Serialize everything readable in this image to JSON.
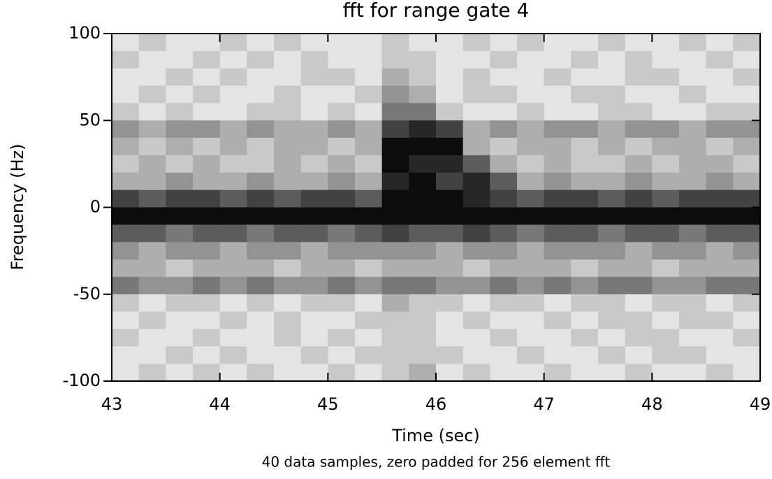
{
  "chart_data": {
    "type": "heatmap",
    "title": "fft for range gate  4",
    "xlabel": "Time (sec)",
    "ylabel": "Frequency (Hz)",
    "subtitle": "40 data samples, zero padded for  256 element fft",
    "xlim": [
      43,
      49
    ],
    "ylim": [
      -100,
      100
    ],
    "xticks": [
      43,
      44,
      45,
      46,
      47,
      48,
      49
    ],
    "yticks": [
      -100,
      -50,
      0,
      50,
      100
    ],
    "xbins": [
      43,
      43.25,
      43.5,
      43.75,
      44,
      44.25,
      44.5,
      44.75,
      45,
      45.25,
      45.5,
      45.75,
      46,
      46.25,
      46.5,
      46.75,
      47,
      47.25,
      47.5,
      47.75,
      48,
      48.25,
      48.5,
      48.75,
      49
    ],
    "ybins": [
      100,
      90,
      80,
      70,
      60,
      50,
      40,
      30,
      20,
      10,
      0,
      -10,
      -20,
      -30,
      -40,
      -50,
      -60,
      -70,
      -80,
      -90,
      -100
    ],
    "z": [
      [
        1,
        2,
        1,
        1,
        2,
        1,
        2,
        1,
        1,
        1,
        2,
        1,
        1,
        2,
        1,
        2,
        1,
        1,
        2,
        1,
        1,
        2,
        1,
        2
      ],
      [
        2,
        1,
        1,
        2,
        1,
        2,
        1,
        2,
        1,
        1,
        2,
        2,
        1,
        1,
        2,
        1,
        1,
        2,
        1,
        2,
        1,
        1,
        2,
        1
      ],
      [
        1,
        1,
        2,
        1,
        2,
        1,
        1,
        2,
        2,
        1,
        3,
        2,
        1,
        2,
        1,
        1,
        2,
        1,
        1,
        2,
        2,
        1,
        1,
        2
      ],
      [
        1,
        2,
        1,
        2,
        1,
        1,
        2,
        1,
        1,
        2,
        4,
        3,
        1,
        2,
        2,
        1,
        1,
        2,
        2,
        1,
        1,
        2,
        1,
        1
      ],
      [
        2,
        1,
        2,
        1,
        1,
        2,
        2,
        1,
        2,
        1,
        5,
        5,
        2,
        1,
        1,
        2,
        1,
        1,
        2,
        2,
        1,
        1,
        2,
        2
      ],
      [
        4,
        3,
        4,
        4,
        3,
        4,
        3,
        3,
        4,
        3,
        7,
        8,
        7,
        3,
        4,
        3,
        4,
        4,
        3,
        4,
        4,
        3,
        4,
        4
      ],
      [
        3,
        2,
        3,
        2,
        3,
        2,
        3,
        3,
        2,
        3,
        9,
        9,
        9,
        3,
        2,
        3,
        3,
        2,
        3,
        2,
        3,
        3,
        2,
        3
      ],
      [
        2,
        3,
        2,
        3,
        2,
        2,
        3,
        2,
        3,
        2,
        9,
        8,
        8,
        6,
        3,
        2,
        3,
        2,
        2,
        3,
        2,
        3,
        3,
        2
      ],
      [
        3,
        3,
        4,
        3,
        3,
        4,
        3,
        3,
        4,
        3,
        8,
        9,
        7,
        8,
        6,
        3,
        4,
        3,
        3,
        4,
        3,
        3,
        4,
        3
      ],
      [
        7,
        6,
        7,
        7,
        6,
        7,
        6,
        7,
        7,
        6,
        9,
        9,
        9,
        8,
        7,
        6,
        7,
        7,
        6,
        7,
        6,
        7,
        7,
        7
      ],
      [
        9,
        9,
        9,
        9,
        9,
        9,
        9,
        9,
        9,
        9,
        9,
        9,
        9,
        9,
        9,
        9,
        9,
        9,
        9,
        9,
        9,
        9,
        9,
        9
      ],
      [
        6,
        6,
        5,
        6,
        6,
        5,
        6,
        6,
        5,
        6,
        7,
        6,
        6,
        7,
        6,
        5,
        6,
        6,
        5,
        6,
        6,
        5,
        6,
        6
      ],
      [
        4,
        3,
        4,
        4,
        3,
        4,
        4,
        3,
        4,
        4,
        4,
        4,
        3,
        4,
        4,
        3,
        4,
        4,
        4,
        3,
        4,
        4,
        3,
        4
      ],
      [
        3,
        3,
        2,
        3,
        3,
        3,
        2,
        3,
        3,
        2,
        3,
        3,
        3,
        2,
        3,
        3,
        3,
        2,
        3,
        3,
        2,
        3,
        3,
        3
      ],
      [
        5,
        4,
        4,
        5,
        4,
        5,
        4,
        4,
        5,
        4,
        5,
        5,
        4,
        4,
        5,
        4,
        5,
        4,
        5,
        5,
        4,
        4,
        5,
        5
      ],
      [
        2,
        1,
        2,
        2,
        1,
        2,
        1,
        2,
        2,
        1,
        3,
        2,
        2,
        1,
        2,
        2,
        1,
        2,
        2,
        1,
        2,
        2,
        1,
        2
      ],
      [
        1,
        2,
        1,
        1,
        2,
        1,
        2,
        1,
        1,
        2,
        2,
        2,
        1,
        2,
        1,
        1,
        2,
        1,
        2,
        2,
        1,
        2,
        2,
        1
      ],
      [
        2,
        1,
        1,
        2,
        1,
        1,
        2,
        1,
        2,
        1,
        2,
        2,
        1,
        1,
        2,
        1,
        1,
        2,
        1,
        2,
        2,
        1,
        1,
        2
      ],
      [
        1,
        1,
        2,
        1,
        2,
        1,
        1,
        2,
        1,
        2,
        2,
        2,
        2,
        1,
        1,
        2,
        1,
        1,
        2,
        1,
        2,
        2,
        1,
        1
      ],
      [
        1,
        2,
        1,
        2,
        1,
        2,
        1,
        1,
        2,
        1,
        2,
        3,
        1,
        2,
        1,
        1,
        2,
        1,
        1,
        2,
        1,
        1,
        2,
        1
      ]
    ]
  }
}
